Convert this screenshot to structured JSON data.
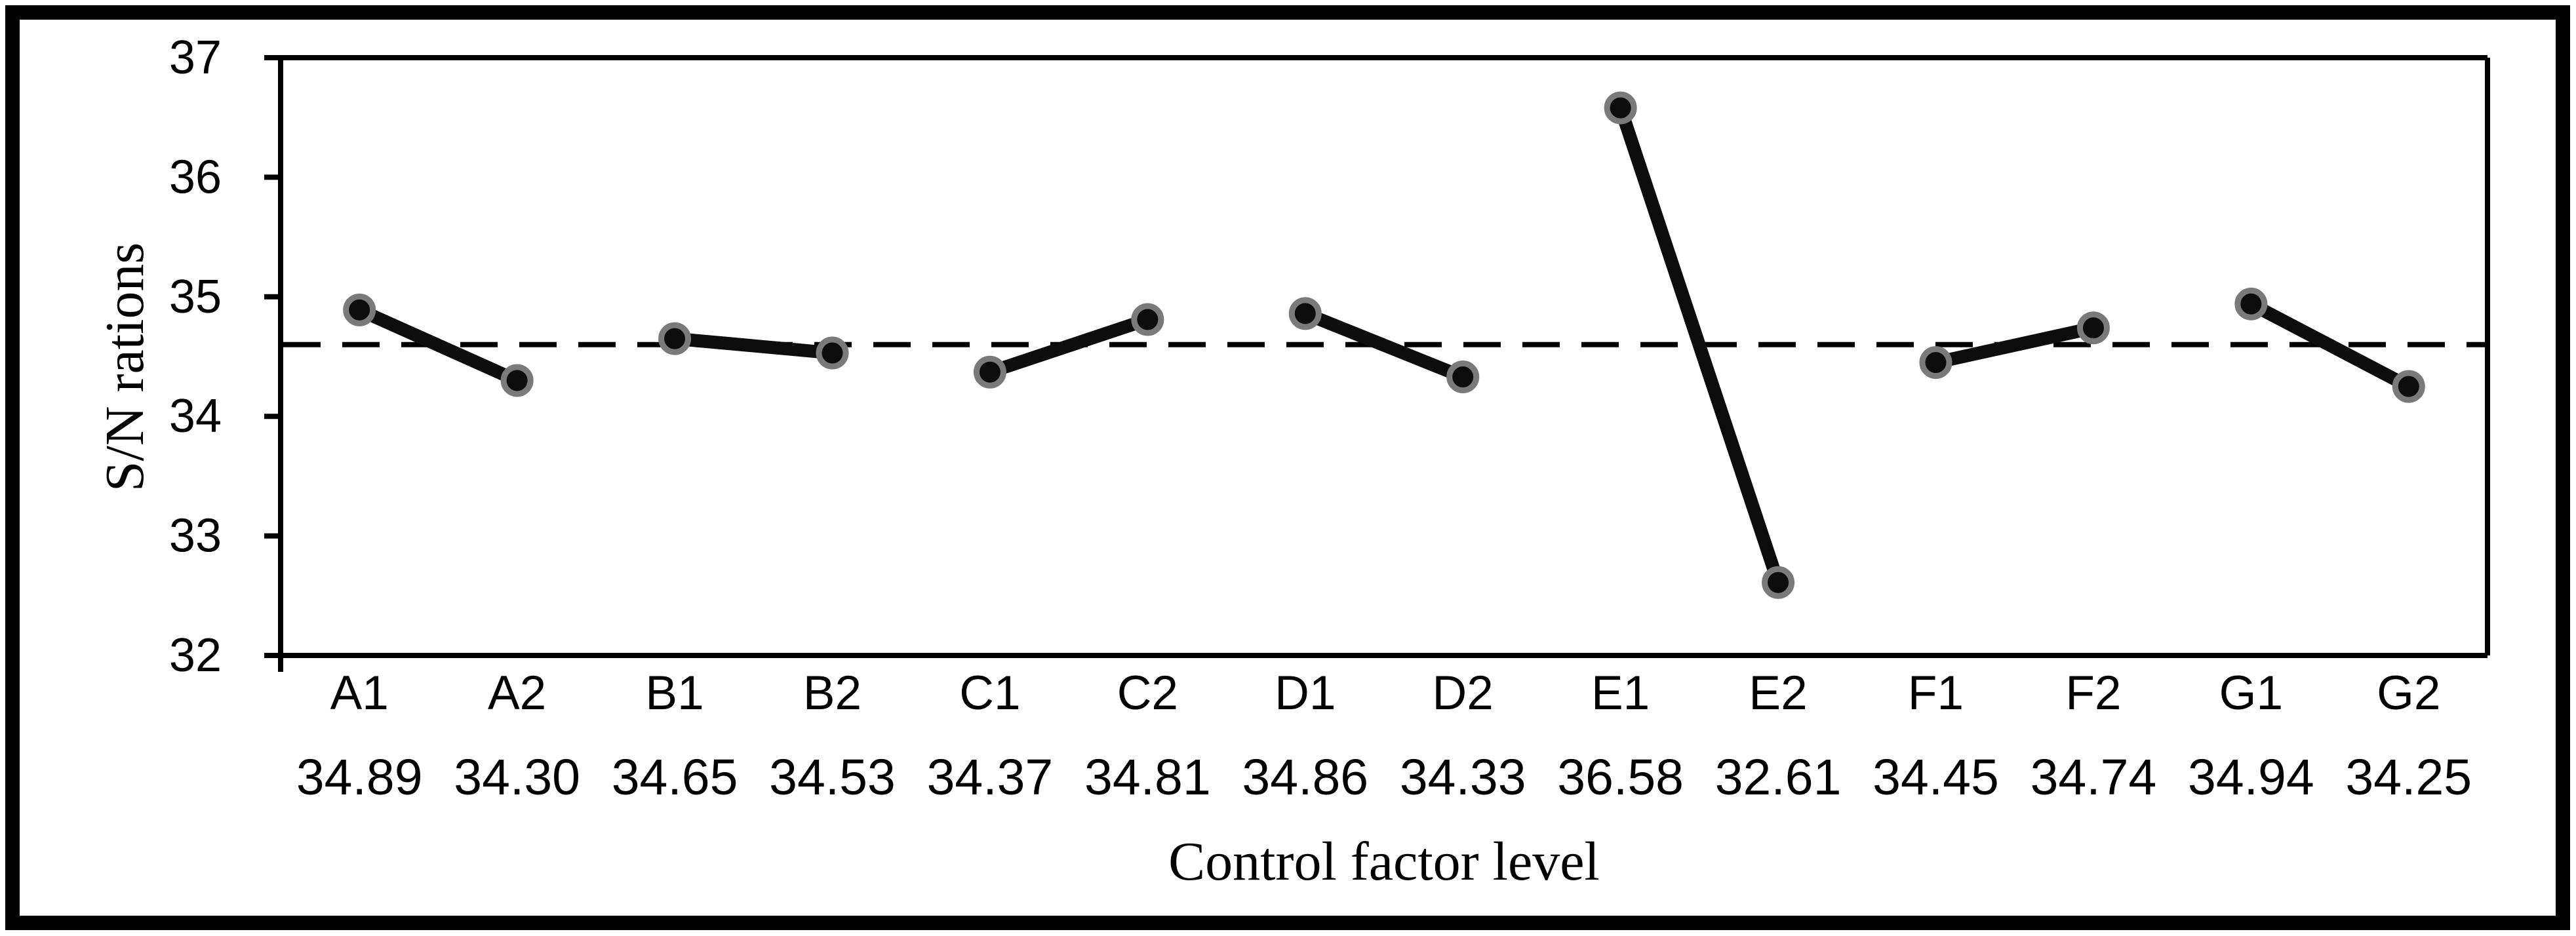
{
  "figure": {
    "background_color": "#ffffff",
    "frame_color": "#000000"
  },
  "chart_data": {
    "type": "line",
    "title": "",
    "xlabel": "Control factor level",
    "ylabel": "S/N rations",
    "categories": [
      "A1",
      "A2",
      "B1",
      "B2",
      "C1",
      "C2",
      "D1",
      "D2",
      "E1",
      "E2",
      "F1",
      "F2",
      "G1",
      "G2"
    ],
    "values": [
      34.89,
      34.3,
      34.65,
      34.53,
      34.37,
      34.81,
      34.86,
      34.33,
      36.58,
      32.61,
      34.45,
      34.74,
      34.94,
      34.25
    ],
    "value_labels": [
      "34.89",
      "34.30",
      "34.65",
      "34.53",
      "34.37",
      "34.81",
      "34.86",
      "34.33",
      "36.58",
      "32.61",
      "34.45",
      "34.74",
      "34.94",
      "34.25"
    ],
    "pair_groups": [
      [
        0,
        1
      ],
      [
        2,
        3
      ],
      [
        4,
        5
      ],
      [
        6,
        7
      ],
      [
        8,
        9
      ],
      [
        10,
        11
      ],
      [
        12,
        13
      ]
    ],
    "mean_line_value": 34.6,
    "ylim": [
      32,
      37
    ],
    "yticks": [
      37,
      36,
      35,
      34,
      33,
      32
    ],
    "grid": false,
    "legend": null,
    "colors": {
      "series_line": "#0d0d0d",
      "marker_fill": "#0d0d0d",
      "marker_ring": "#7a7a7a",
      "mean_line": "#000000",
      "axis": "#000000",
      "text": "#000000"
    }
  }
}
